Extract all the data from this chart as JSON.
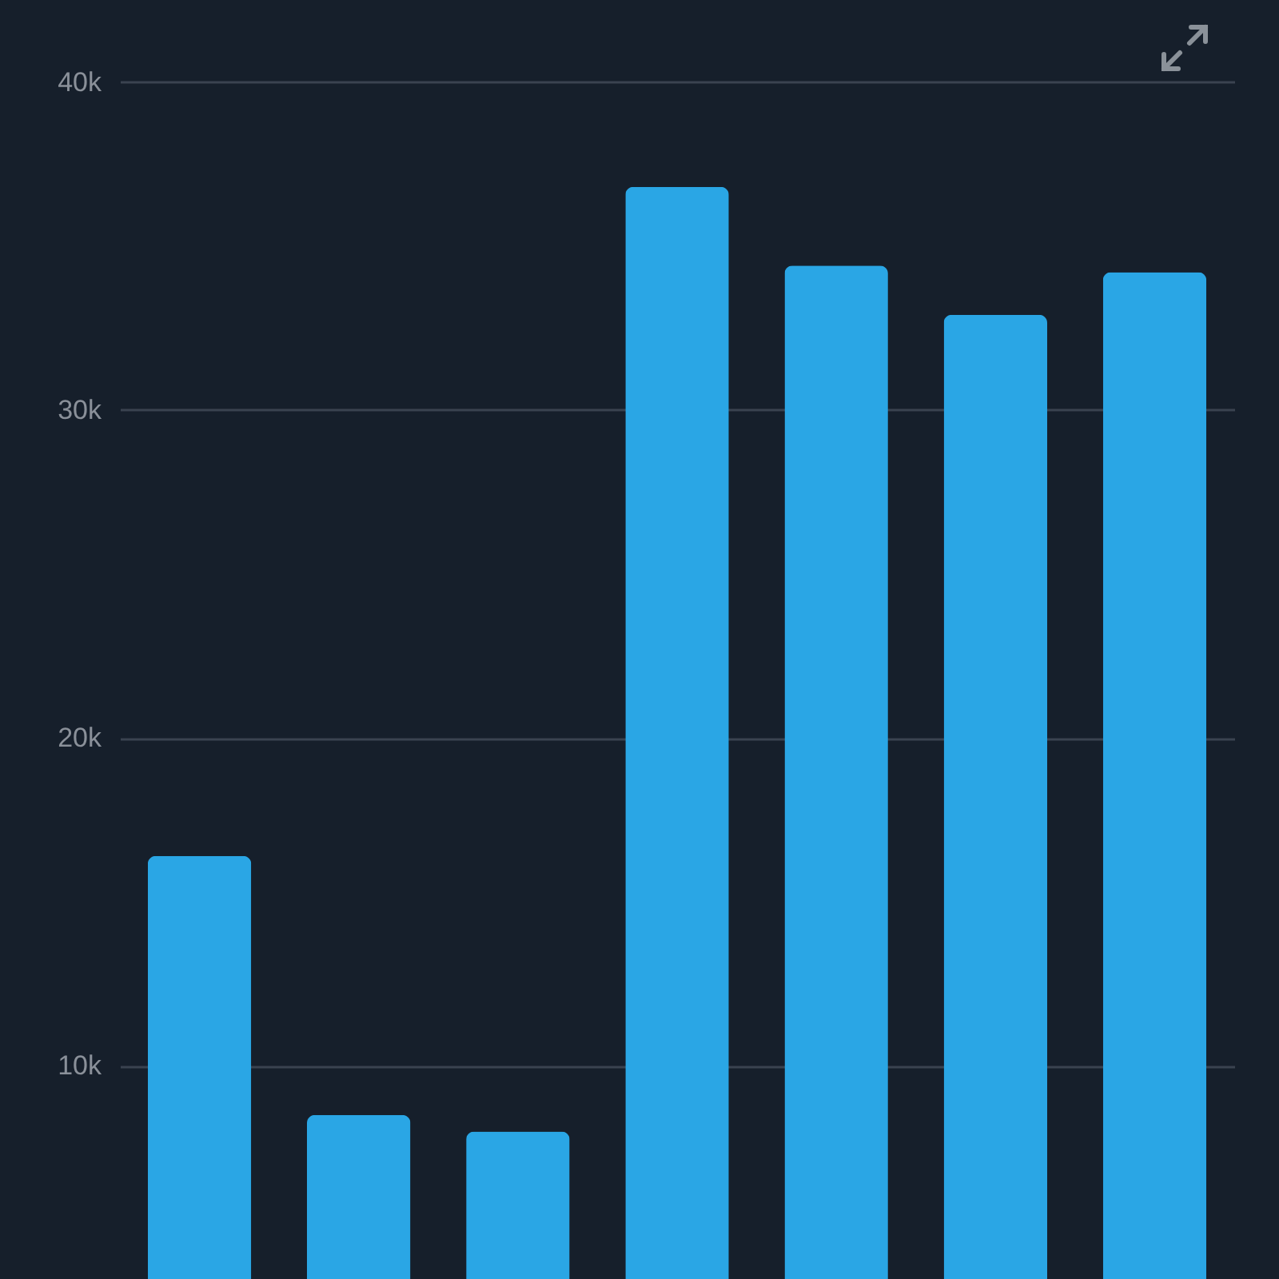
{
  "chart_data": {
    "type": "bar",
    "categories": [
      null,
      null,
      null,
      null,
      null,
      null,
      null
    ],
    "series": [
      {
        "color": "#2aa6e5",
        "values": [
          16400,
          8500,
          8000,
          36800,
          34400,
          32900,
          34200
        ]
      }
    ],
    "ylim": [
      3500,
      42500
    ],
    "yticks": [
      {
        "value": 10000,
        "label": "10k"
      },
      {
        "value": 20000,
        "label": "20k"
      },
      {
        "value": 30000,
        "label": "30k"
      },
      {
        "value": 40000,
        "label": "40k"
      }
    ],
    "grid": "y",
    "tick_labels": "y"
  }
}
